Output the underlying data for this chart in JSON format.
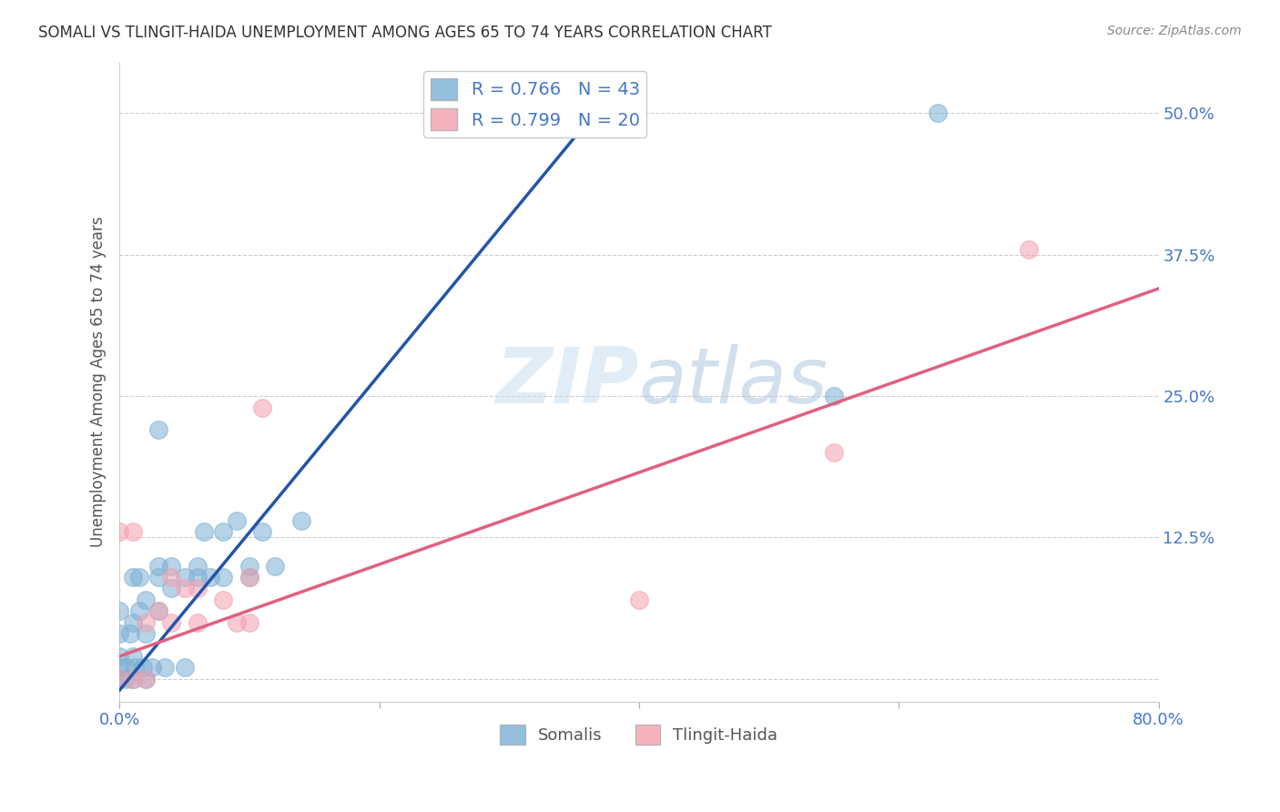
{
  "title": "SOMALI VS TLINGIT-HAIDA UNEMPLOYMENT AMONG AGES 65 TO 74 YEARS CORRELATION CHART",
  "source": "Source: ZipAtlas.com",
  "ylabel": "Unemployment Among Ages 65 to 74 years",
  "xlim": [
    0.0,
    0.8
  ],
  "ylim": [
    -0.02,
    0.545
  ],
  "xticks": [
    0.0,
    0.2,
    0.4,
    0.6,
    0.8
  ],
  "xticklabels": [
    "0.0%",
    "",
    "",
    "",
    "80.0%"
  ],
  "yticks": [
    0.0,
    0.125,
    0.25,
    0.375,
    0.5
  ],
  "yticklabels": [
    "",
    "12.5%",
    "25.0%",
    "37.5%",
    "50.0%"
  ],
  "grid_color": "#cccccc",
  "background_color": "#ffffff",
  "watermark_zip": "ZIP",
  "watermark_atlas": "atlas",
  "somali_color": "#7bafd4",
  "tlingit_color": "#f4a0b0",
  "somali_line_color": "#2255aa",
  "tlingit_line_color": "#e06080",
  "somali_R": 0.766,
  "somali_N": 43,
  "tlingit_R": 0.799,
  "tlingit_N": 20,
  "somali_x": [
    0.0,
    0.0,
    0.0,
    0.0,
    0.0,
    0.005,
    0.005,
    0.008,
    0.01,
    0.01,
    0.01,
    0.01,
    0.012,
    0.015,
    0.015,
    0.018,
    0.02,
    0.02,
    0.02,
    0.025,
    0.03,
    0.03,
    0.03,
    0.03,
    0.035,
    0.04,
    0.04,
    0.05,
    0.05,
    0.06,
    0.06,
    0.065,
    0.07,
    0.08,
    0.08,
    0.09,
    0.1,
    0.1,
    0.11,
    0.12,
    0.14,
    0.55,
    0.63
  ],
  "somali_y": [
    0.0,
    0.01,
    0.02,
    0.04,
    0.06,
    0.0,
    0.01,
    0.04,
    0.0,
    0.02,
    0.05,
    0.09,
    0.01,
    0.06,
    0.09,
    0.01,
    0.0,
    0.04,
    0.07,
    0.01,
    0.06,
    0.09,
    0.1,
    0.22,
    0.01,
    0.08,
    0.1,
    0.01,
    0.09,
    0.09,
    0.1,
    0.13,
    0.09,
    0.13,
    0.09,
    0.14,
    0.09,
    0.1,
    0.13,
    0.1,
    0.14,
    0.25,
    0.5
  ],
  "tlingit_x": [
    0.0,
    0.0,
    0.01,
    0.01,
    0.02,
    0.02,
    0.03,
    0.04,
    0.04,
    0.05,
    0.06,
    0.06,
    0.08,
    0.09,
    0.1,
    0.1,
    0.11,
    0.4,
    0.55,
    0.7
  ],
  "tlingit_y": [
    0.0,
    0.13,
    0.0,
    0.13,
    0.0,
    0.05,
    0.06,
    0.05,
    0.09,
    0.08,
    0.05,
    0.08,
    0.07,
    0.05,
    0.05,
    0.09,
    0.24,
    0.07,
    0.2,
    0.38
  ],
  "somali_line_x": [
    0.0,
    0.38
  ],
  "somali_line_y": [
    -0.01,
    0.52
  ],
  "tlingit_line_x": [
    0.0,
    0.8
  ],
  "tlingit_line_y": [
    0.02,
    0.345
  ]
}
